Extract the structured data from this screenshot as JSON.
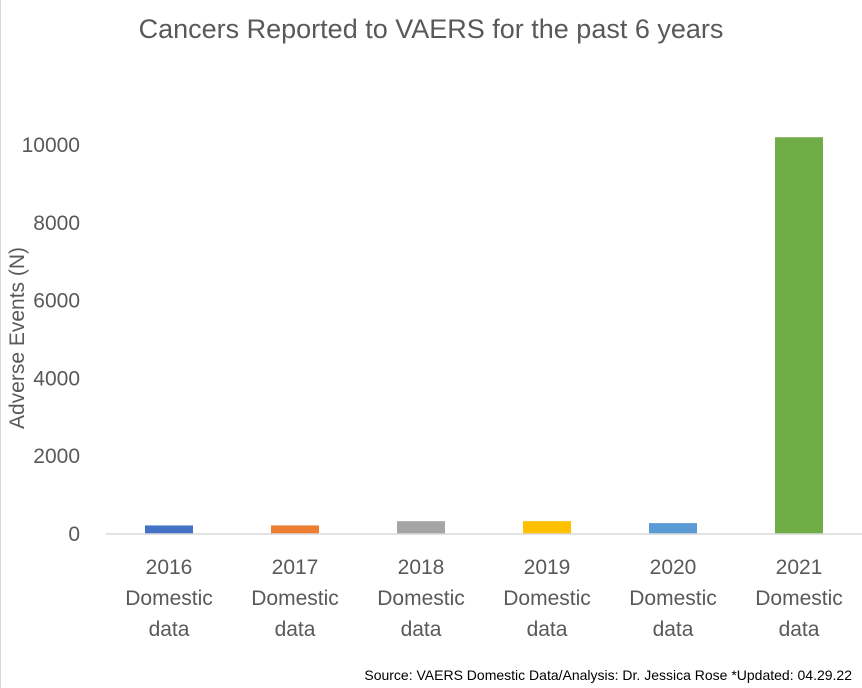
{
  "chart_data": {
    "type": "bar",
    "title": "Cancers Reported to VAERS for the past 6 years",
    "ylabel": "Adverse Events (N)",
    "xlabel": "",
    "categories": [
      [
        "2016",
        "Domestic",
        "data"
      ],
      [
        "2017",
        "Domestic",
        "data"
      ],
      [
        "2018",
        "Domestic",
        "data"
      ],
      [
        "2019",
        "Domestic",
        "data"
      ],
      [
        "2020",
        "Domestic",
        "data"
      ],
      [
        "2021",
        "Domestic",
        "data"
      ]
    ],
    "values": [
      220,
      220,
      330,
      330,
      280,
      10200
    ],
    "colors": [
      "#4472c4",
      "#ed7d31",
      "#a5a5a5",
      "#ffc000",
      "#5b9bd5",
      "#70ad47"
    ],
    "ylim": [
      0,
      10000
    ],
    "yticks": [
      "0",
      "2000",
      "4000",
      "6000",
      "8000",
      "10000"
    ],
    "ytick_values": [
      0,
      2000,
      4000,
      6000,
      8000,
      10000
    ],
    "grid": false,
    "legend": "none"
  },
  "source_note": "Source: VAERS Domestic Data/Analysis: Dr. Jessica Rose *Updated: 04.29.22"
}
